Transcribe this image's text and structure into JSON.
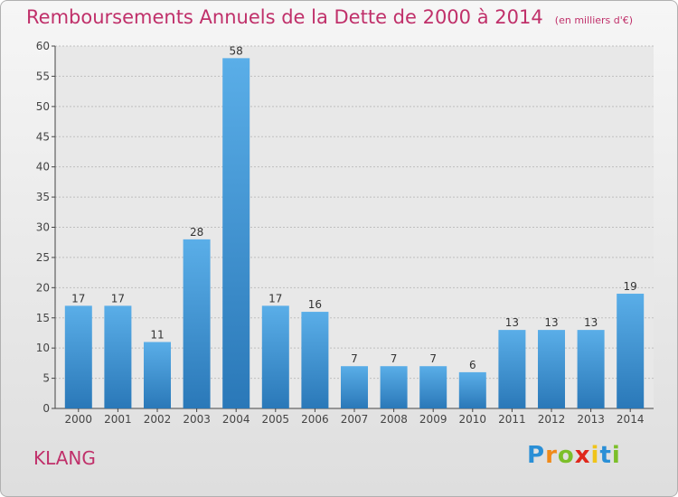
{
  "chart_data": {
    "type": "bar",
    "title": "Remboursements Annuels de la Dette de 2000 à 2014",
    "subtitle": "(en milliers d'€)",
    "categories": [
      "2000",
      "2001",
      "2002",
      "2003",
      "2004",
      "2005",
      "2006",
      "2007",
      "2008",
      "2009",
      "2010",
      "2011",
      "2012",
      "2013",
      "2014"
    ],
    "values": [
      17,
      17,
      11,
      28,
      58,
      17,
      16,
      7,
      7,
      7,
      6,
      13,
      13,
      13,
      19
    ],
    "ylim": [
      0,
      60
    ],
    "yticks": [
      0,
      5,
      10,
      15,
      20,
      25,
      30,
      35,
      40,
      45,
      50,
      55,
      60
    ],
    "grid": true,
    "bar_color_top": "#5aaee8",
    "bar_color_bottom": "#2a78b8",
    "data_labels": true
  },
  "commune": "KLANG",
  "logo": {
    "letters": [
      "P",
      "r",
      "o",
      "x",
      "i",
      "t",
      "i"
    ],
    "colors": [
      "#2a8fd6",
      "#f08a1a",
      "#7cbf2a",
      "#e0271b",
      "#f0c419",
      "#2a8fd6",
      "#7cbf2a"
    ]
  },
  "colors": {
    "title": "#c0306a",
    "axis": "#444444",
    "grid": "#bfbfbf"
  }
}
